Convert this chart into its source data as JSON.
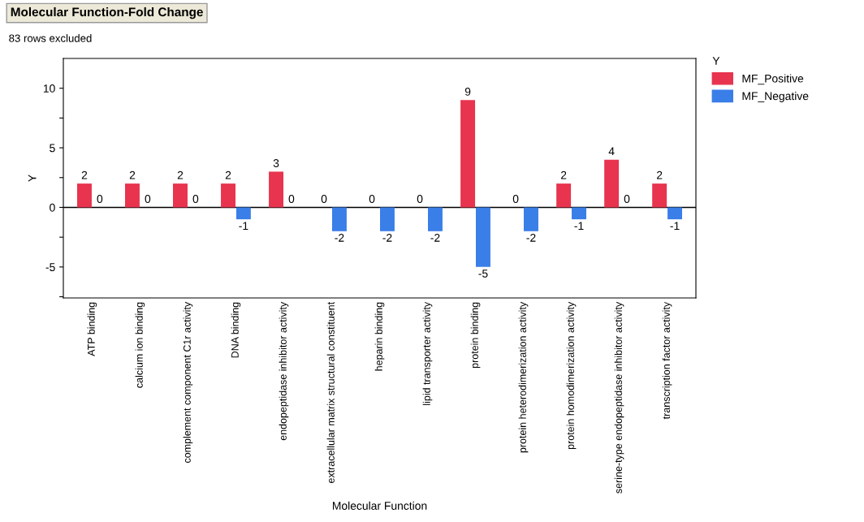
{
  "chart_data": {
    "type": "bar",
    "title": "Molecular Function-Fold Change",
    "subtitle": "83 rows excluded",
    "xlabel": "Molecular Function",
    "ylabel": "Y",
    "legend_title": "Y",
    "categories": [
      "ATP binding",
      "calcium ion binding",
      "complement component C1r activity",
      "DNA binding",
      "endopeptidase inhibitor activity",
      "extracellular matrix structural constituent",
      "heparin binding",
      "lipid transporter activity",
      "protein binding",
      "protein heterodimerization activity",
      "protein homodimerization activity",
      "serine-type endopeptidase inhibitor activity",
      "transcription factor activity"
    ],
    "series": [
      {
        "name": "MF_Positive",
        "color": "#e8344e",
        "values": [
          2,
          2,
          2,
          2,
          3,
          0,
          0,
          0,
          9,
          0,
          2,
          4,
          2
        ]
      },
      {
        "name": "MF_Negative",
        "color": "#3a7ee8",
        "values": [
          0,
          0,
          0,
          -1,
          0,
          -2,
          -2,
          -2,
          -5,
          -2,
          -1,
          0,
          -1
        ]
      }
    ],
    "ylim": [
      -7.6,
      12.5
    ],
    "yticks": [
      {
        "value": -7.5,
        "label": null
      },
      -5,
      {
        "value": -2.5,
        "label": null
      },
      0,
      {
        "value": 2.5,
        "label": null
      },
      5,
      {
        "value": 7.5,
        "label": null
      },
      10
    ],
    "ref_lines": [
      {
        "axis": "y",
        "value": 0,
        "color": "#000000"
      }
    ],
    "data_labels": true,
    "grid": false,
    "legend": "top right"
  }
}
